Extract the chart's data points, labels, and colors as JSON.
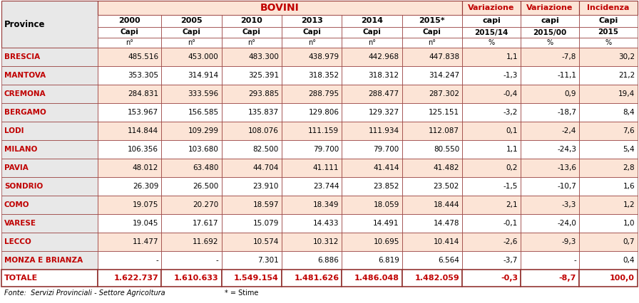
{
  "title_bovini": "BOVINI",
  "title_variazione1": "Variazione",
  "title_variazione2": "Variazione",
  "title_incidenza": "Incidenza",
  "col_headers_row1": [
    "2000",
    "2005",
    "2010",
    "2013",
    "2014",
    "2015*",
    "capi",
    "capi",
    "Capi"
  ],
  "col_headers_row2": [
    "Capi",
    "Capi",
    "Capi",
    "Capi",
    "Capi",
    "Capi",
    "2015/14",
    "2015/00",
    "2015"
  ],
  "col_headers_row3": [
    "n°",
    "n°",
    "n°",
    "n°",
    "n°",
    "n°",
    "%",
    "%",
    "%"
  ],
  "province_header": "Province",
  "rows": [
    [
      "BRESCIA",
      "485.516",
      "453.000",
      "483.300",
      "438.979",
      "442.968",
      "447.838",
      "1,1",
      "-7,8",
      "30,2"
    ],
    [
      "MANTOVA",
      "353.305",
      "314.914",
      "325.391",
      "318.352",
      "318.312",
      "314.247",
      "-1,3",
      "-11,1",
      "21,2"
    ],
    [
      "CREMONA",
      "284.831",
      "333.596",
      "293.885",
      "288.795",
      "288.477",
      "287.302",
      "-0,4",
      "0,9",
      "19,4"
    ],
    [
      "BERGAMO",
      "153.967",
      "156.585",
      "135.837",
      "129.806",
      "129.327",
      "125.151",
      "-3,2",
      "-18,7",
      "8,4"
    ],
    [
      "LODI",
      "114.844",
      "109.299",
      "108.076",
      "111.159",
      "111.934",
      "112.087",
      "0,1",
      "-2,4",
      "7,6"
    ],
    [
      "MILANO",
      "106.356",
      "103.680",
      "82.500",
      "79.700",
      "79.700",
      "80.550",
      "1,1",
      "-24,3",
      "5,4"
    ],
    [
      "PAVIA",
      "48.012",
      "63.480",
      "44.704",
      "41.111",
      "41.414",
      "41.482",
      "0,2",
      "-13,6",
      "2,8"
    ],
    [
      "SONDRIO",
      "26.309",
      "26.500",
      "23.910",
      "23.744",
      "23.852",
      "23.502",
      "-1,5",
      "-10,7",
      "1,6"
    ],
    [
      "COMO",
      "19.075",
      "20.270",
      "18.597",
      "18.349",
      "18.059",
      "18.444",
      "2,1",
      "-3,3",
      "1,2"
    ],
    [
      "VARESE",
      "19.045",
      "17.617",
      "15.079",
      "14.433",
      "14.491",
      "14.478",
      "-0,1",
      "-24,0",
      "1,0"
    ],
    [
      "LECCO",
      "11.477",
      "11.692",
      "10.574",
      "10.312",
      "10.695",
      "10.414",
      "-2,6",
      "-9,3",
      "0,7"
    ],
    [
      "MONZA E BRIANZA",
      "-",
      "-",
      "7.301",
      "6.886",
      "6.819",
      "6.564",
      "-3,7",
      "-",
      "0,4"
    ]
  ],
  "totale_row": [
    "TOTALE",
    "1.622.737",
    "1.610.633",
    "1.549.154",
    "1.481.626",
    "1.486.048",
    "1.482.059",
    "-0,3",
    "-8,7",
    "100,0"
  ],
  "footer_left": "Fonte:  Servizi Provinciali - Settore Agricoltura",
  "footer_right": "* = Stime",
  "bg_header_top": "#fce4d6",
  "bg_header_sub": "#ffffff",
  "bg_row_even": "#fce4d6",
  "bg_row_odd": "#ffffff",
  "bg_province_col": "#e8e8e8",
  "text_red": "#c00000",
  "text_black": "#000000",
  "border_color": "#943634",
  "header_text_red": "#c00000"
}
